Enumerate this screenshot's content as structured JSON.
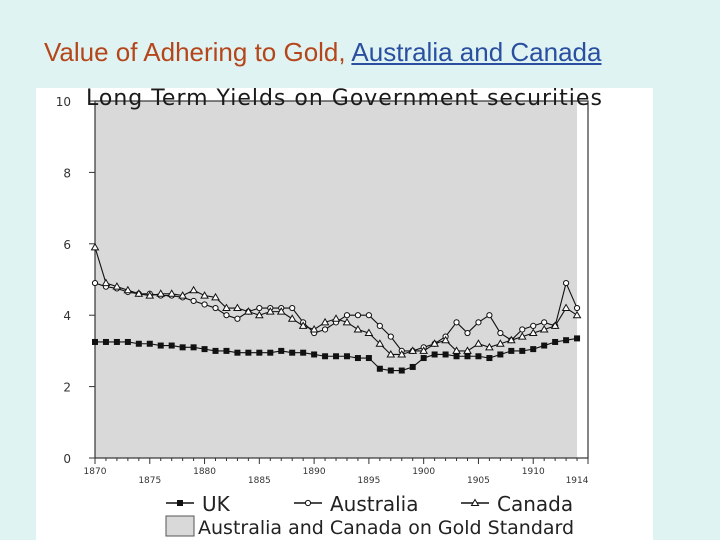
{
  "slide": {
    "title": "Value of Adhering to Gold, ",
    "title_link": "Australia and Canada"
  },
  "colors": {
    "background": "#dff4f2",
    "title": "#b5461b",
    "link": "#2a4fa0",
    "shade": "#d9d9d9"
  },
  "chart_data": {
    "type": "line",
    "title": "Long Term Yields on Government securities",
    "xlim": [
      1870,
      1915
    ],
    "ylim": [
      0,
      10
    ],
    "y_ticks": [
      0,
      2,
      4,
      6,
      8,
      10
    ],
    "x_tick_labels": [
      1870,
      1875,
      1880,
      1885,
      1890,
      1895,
      1900,
      1905,
      1910,
      1914
    ],
    "x": [
      1870,
      1871,
      1872,
      1873,
      1874,
      1875,
      1876,
      1877,
      1878,
      1879,
      1880,
      1881,
      1882,
      1883,
      1884,
      1885,
      1886,
      1887,
      1888,
      1889,
      1890,
      1891,
      1892,
      1893,
      1894,
      1895,
      1896,
      1897,
      1898,
      1899,
      1900,
      1901,
      1902,
      1903,
      1904,
      1905,
      1906,
      1907,
      1908,
      1909,
      1910,
      1911,
      1912,
      1913,
      1914
    ],
    "series": [
      {
        "name": "UK",
        "marker": "square",
        "values": [
          3.25,
          3.25,
          3.25,
          3.25,
          3.2,
          3.2,
          3.15,
          3.15,
          3.1,
          3.1,
          3.05,
          3.0,
          3.0,
          2.95,
          2.95,
          2.95,
          2.95,
          3.0,
          2.95,
          2.95,
          2.9,
          2.85,
          2.85,
          2.85,
          2.8,
          2.8,
          2.5,
          2.45,
          2.45,
          2.55,
          2.8,
          2.9,
          2.9,
          2.85,
          2.85,
          2.85,
          2.8,
          2.9,
          3.0,
          3.0,
          3.05,
          3.15,
          3.25,
          3.3,
          3.35
        ]
      },
      {
        "name": "Australia",
        "marker": "circle",
        "values": [
          4.9,
          4.8,
          4.75,
          4.65,
          4.6,
          4.6,
          4.55,
          4.55,
          4.5,
          4.4,
          4.3,
          4.2,
          4.0,
          3.9,
          4.1,
          4.2,
          4.2,
          4.2,
          4.2,
          3.8,
          3.5,
          3.6,
          3.8,
          4.0,
          4.0,
          4.0,
          3.7,
          3.4,
          3.0,
          3.0,
          3.1,
          3.2,
          3.4,
          3.8,
          3.5,
          3.8,
          4.0,
          3.5,
          3.3,
          3.6,
          3.7,
          3.8,
          3.7,
          4.9,
          4.2
        ]
      },
      {
        "name": "Canada",
        "marker": "triangle",
        "values": [
          5.9,
          4.9,
          4.8,
          4.7,
          4.6,
          4.55,
          4.6,
          4.6,
          4.55,
          4.7,
          4.55,
          4.5,
          4.2,
          4.2,
          4.1,
          4.0,
          4.1,
          4.1,
          3.9,
          3.7,
          3.6,
          3.8,
          3.9,
          3.8,
          3.6,
          3.5,
          3.2,
          2.9,
          2.9,
          3.0,
          3.0,
          3.2,
          3.3,
          3.0,
          3.0,
          3.2,
          3.1,
          3.2,
          3.3,
          3.4,
          3.5,
          3.6,
          3.7,
          4.2,
          4.0
        ]
      }
    ],
    "gold_standard": {
      "label": "Australia and Canada on Gold Standard",
      "shaded_ranges": [
        [
          1870,
          1914
        ]
      ]
    },
    "legend_position": "bottom",
    "grid": false
  }
}
